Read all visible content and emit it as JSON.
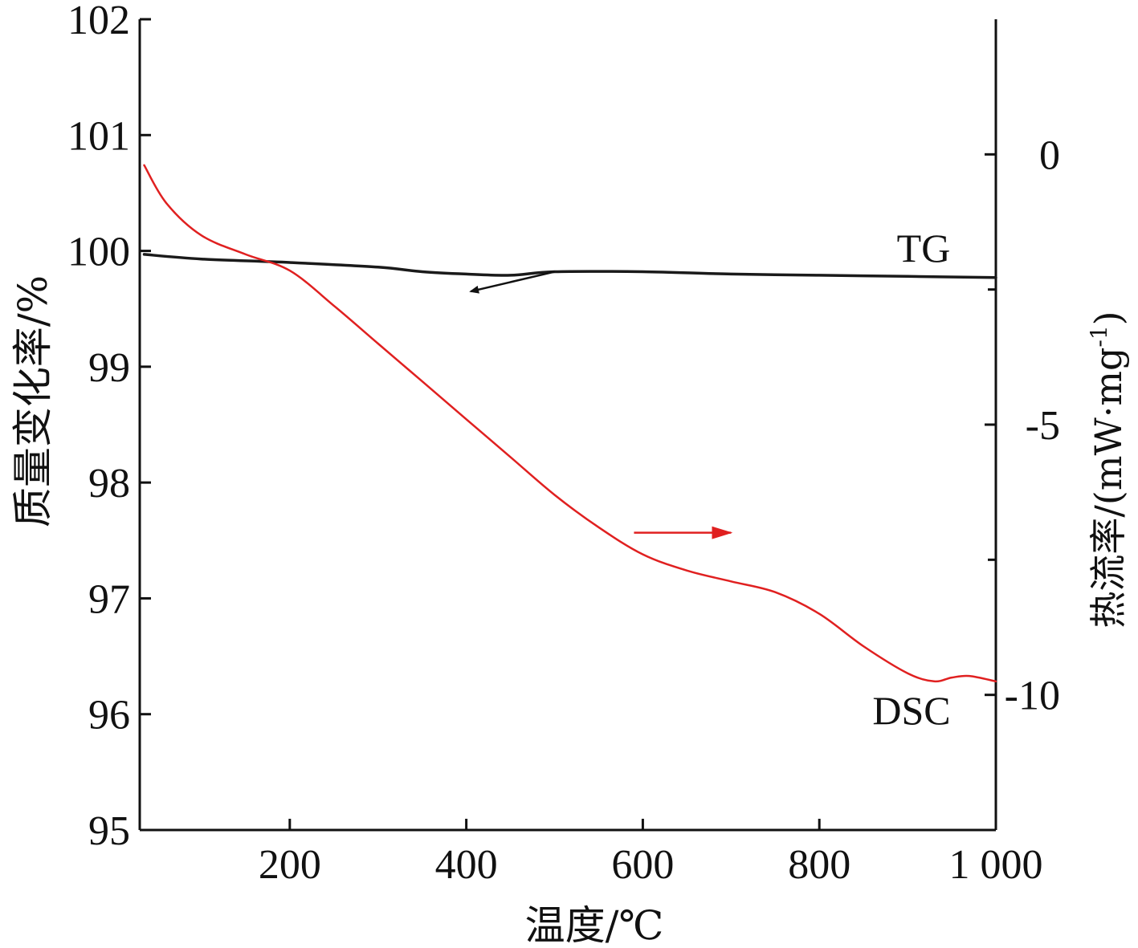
{
  "chart_data": {
    "type": "line",
    "xlabel": "温度/℃",
    "ylabel_left": "质量变化率/%",
    "ylabel_right_main": "热流率/(mW·mg",
    "ylabel_right_sup": "-1",
    "ylabel_right_close": ")",
    "xlim": [
      30,
      1000
    ],
    "ylim_left": [
      95,
      102
    ],
    "ylim_right": [
      -12.5,
      2.5
    ],
    "x_ticks": [
      200,
      400,
      600,
      800,
      1000
    ],
    "x_tick_labels": [
      "200",
      "400",
      "600",
      "800",
      "1 000"
    ],
    "y_left_ticks": [
      95,
      96,
      97,
      98,
      99,
      100,
      101,
      102
    ],
    "y_left_tick_labels": [
      "95",
      "96",
      "97",
      "98",
      "99",
      "100",
      "101",
      "102"
    ],
    "y_right_major_ticks": [
      0,
      -5,
      -10
    ],
    "y_right_tick_labels": [
      "0",
      "-5",
      "-10"
    ],
    "y_right_minor_ticks": [
      -2.5,
      -7.5
    ],
    "grid": false,
    "series": [
      {
        "name": "TG",
        "axis": "left",
        "color": "#1a1a1a",
        "x": [
          35,
          100,
          200,
          300,
          350,
          400,
          450,
          500,
          600,
          700,
          800,
          900,
          1000
        ],
        "y": [
          99.97,
          99.93,
          99.9,
          99.86,
          99.82,
          99.8,
          99.79,
          99.82,
          99.82,
          99.8,
          99.79,
          99.78,
          99.77
        ]
      },
      {
        "name": "DSC",
        "axis": "right",
        "color": "#e02020",
        "x": [
          35,
          60,
          100,
          150,
          200,
          250,
          300,
          350,
          400,
          450,
          500,
          550,
          600,
          650,
          700,
          750,
          800,
          850,
          900,
          930,
          950,
          970,
          1000
        ],
        "y": [
          -0.2,
          -0.9,
          -1.5,
          -1.85,
          -2.15,
          -2.8,
          -3.5,
          -4.2,
          -4.9,
          -5.6,
          -6.3,
          -6.9,
          -7.4,
          -7.7,
          -7.9,
          -8.1,
          -8.5,
          -9.1,
          -9.6,
          -9.75,
          -9.68,
          -9.65,
          -9.75
        ]
      }
    ],
    "annotations": {
      "tg_label": "TG",
      "dsc_label": "DSC",
      "tg_arrow": {
        "from_x": 500,
        "from_y": 99.82,
        "to_x": 405,
        "to_y": 99.65,
        "points_to": "left-axis",
        "color": "#111111"
      },
      "dsc_arrow": {
        "from_x": 590,
        "from_y": -7.0,
        "to_x": 700,
        "to_y": -7.0,
        "points_to": "right-axis",
        "color": "#e02020"
      }
    }
  }
}
